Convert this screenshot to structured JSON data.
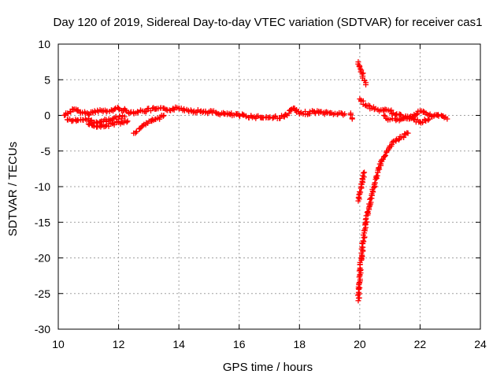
{
  "chart_data": {
    "type": "scatter",
    "title": "Day 120 of 2019, Sidereal Day-to-day VTEC variation (SDTVAR) for receiver cas1",
    "xlabel": "GPS time / hours",
    "ylabel": "SDTVAR / TECUs",
    "xlim": [
      10,
      24
    ],
    "ylim": [
      -30,
      10
    ],
    "xticks": [
      10,
      12,
      14,
      16,
      18,
      20,
      22,
      24
    ],
    "yticks": [
      10,
      5,
      0,
      -5,
      -10,
      -15,
      -20,
      -25,
      -30
    ],
    "grid": true,
    "marker": "+",
    "series_color": "#ff0000",
    "series": [
      {
        "name": "SDTVAR",
        "segments": [
          {
            "x": [
              10.2,
              10.5,
              10.8,
              11.0,
              11.3,
              11.6,
              12.0,
              12.4,
              12.8,
              13.2,
              13.6,
              14.0,
              14.5,
              15.0,
              15.5,
              16.0,
              16.5,
              17.0,
              17.5,
              17.8,
              18.0,
              18.5,
              19.0,
              19.5
            ],
            "y": [
              0.0,
              0.8,
              0.4,
              0.2,
              0.7,
              0.5,
              1.0,
              0.4,
              0.6,
              0.9,
              0.8,
              1.0,
              0.6,
              0.5,
              0.2,
              0.0,
              -0.2,
              -0.3,
              -0.2,
              1.0,
              0.2,
              0.5,
              0.3,
              0.2
            ]
          },
          {
            "x": [
              10.3,
              10.6,
              10.9,
              11.2,
              11.5,
              11.8,
              12.2
            ],
            "y": [
              -0.6,
              -0.8,
              -0.5,
              -1.0,
              -0.8,
              -0.5,
              -0.2
            ]
          },
          {
            "x": [
              11.0,
              11.3,
              11.6,
              12.0,
              12.3
            ],
            "y": [
              -1.2,
              -1.6,
              -1.4,
              -1.0,
              -0.8
            ]
          },
          {
            "x": [
              12.5,
              12.7,
              12.9,
              13.1,
              13.3,
              13.5
            ],
            "y": [
              -2.5,
              -1.9,
              -1.3,
              -0.8,
              -0.4,
              0.0
            ]
          },
          {
            "x": [
              19.7,
              19.75
            ],
            "y": [
              0.3,
              -0.5
            ]
          },
          {
            "x": [
              19.95,
              20.0,
              20.05,
              20.1,
              20.15,
              20.2
            ],
            "y": [
              7.5,
              6.8,
              6.1,
              5.5,
              4.9,
              4.3
            ]
          },
          {
            "x": [
              20.0,
              20.2,
              20.4,
              20.6,
              20.8,
              21.0,
              21.2,
              21.5,
              21.8,
              22.0,
              22.2,
              22.4,
              22.6,
              22.8,
              22.9
            ],
            "y": [
              2.3,
              1.4,
              1.0,
              0.8,
              0.7,
              0.6,
              0.1,
              -0.3,
              0.1,
              0.6,
              0.3,
              -0.2,
              0.1,
              -0.3,
              -0.5
            ]
          },
          {
            "x": [
              20.8,
              21.0,
              21.2,
              21.5,
              21.8,
              22.0,
              22.3
            ],
            "y": [
              0.0,
              -0.6,
              -0.7,
              -0.4,
              -0.6,
              -0.9,
              -0.5
            ]
          },
          {
            "x": [
              19.95,
              20.0,
              20.05,
              20.1,
              20.15
            ],
            "y": [
              -12.0,
              -11.0,
              -10.0,
              -9.0,
              -8.0
            ]
          },
          {
            "x": [
              19.95,
              20.0,
              20.05,
              20.1,
              20.15,
              20.2,
              20.3,
              20.4,
              20.5,
              20.6,
              20.7,
              20.8,
              20.9,
              21.0,
              21.2,
              21.4,
              21.6
            ],
            "y": [
              -26.0,
              -22.5,
              -20.0,
              -18.0,
              -16.5,
              -15.0,
              -13.0,
              -11.0,
              -9.5,
              -8.0,
              -6.8,
              -5.8,
              -5.0,
              -4.3,
              -3.6,
              -3.0,
              -2.5
            ]
          }
        ]
      }
    ]
  }
}
